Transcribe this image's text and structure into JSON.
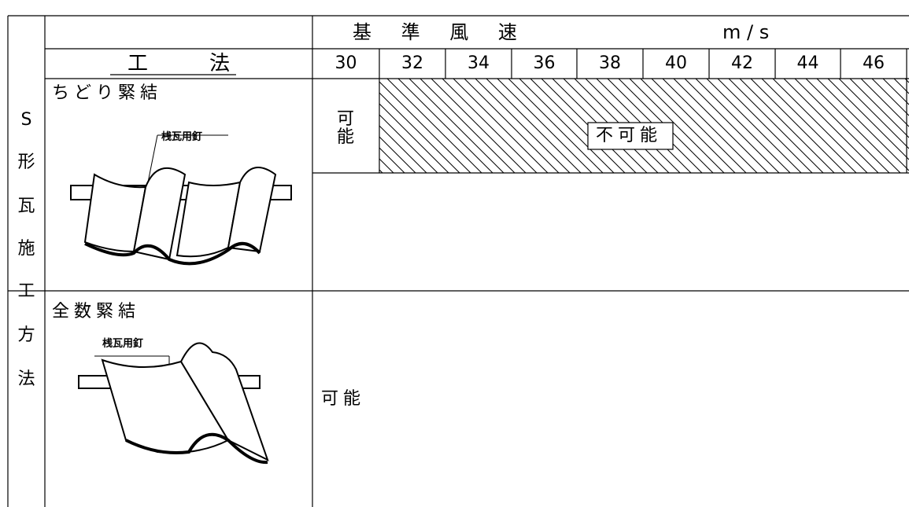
{
  "header": {
    "speed_title": "基 準 風 速",
    "unit": "m / s",
    "method": "工　　　法",
    "speeds": [
      30,
      32,
      34,
      36,
      38,
      40,
      42,
      44,
      46
    ]
  },
  "side_label": [
    "S",
    "形",
    "瓦",
    "施",
    "工",
    "方",
    "法"
  ],
  "rows": [
    {
      "name": "ちどり緊結",
      "nail_label": "桟瓦用釘",
      "possible": "可能",
      "impossible": "不可能"
    },
    {
      "name": "全数緊結",
      "nail_label": "桟瓦用釘",
      "possible": "可能"
    }
  ]
}
